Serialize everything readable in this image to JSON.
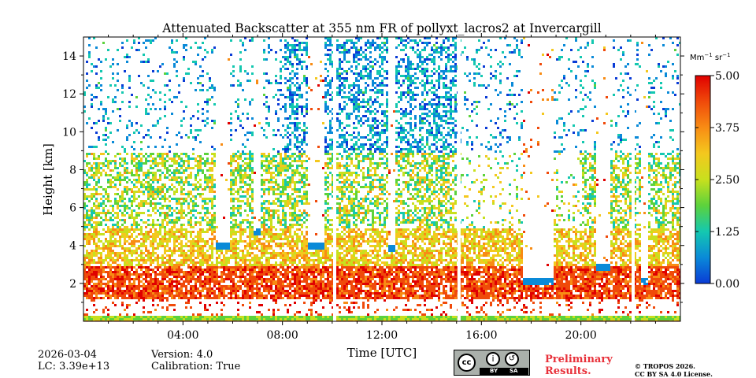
{
  "chart_data": {
    "type": "heatmap",
    "title": "Attenuated Backscatter at 355 nm FR of pollyxt_lacros2 at Invercargill",
    "xlabel": "Time [UTC]",
    "ylabel": "Height [km]",
    "xlim": [
      0,
      24
    ],
    "ylim": [
      0,
      15
    ],
    "x_ticks": [
      {
        "value": 4,
        "label": "04:00"
      },
      {
        "value": 8,
        "label": "08:00"
      },
      {
        "value": 12,
        "label": "12:00"
      },
      {
        "value": 16,
        "label": "16:00"
      },
      {
        "value": 20,
        "label": "20:00"
      }
    ],
    "y_ticks": [
      {
        "value": 2,
        "label": "2"
      },
      {
        "value": 4,
        "label": "4"
      },
      {
        "value": 6,
        "label": "6"
      },
      {
        "value": 8,
        "label": "8"
      },
      {
        "value": 10,
        "label": "10"
      },
      {
        "value": 12,
        "label": "12"
      },
      {
        "value": 14,
        "label": "14"
      }
    ],
    "colorbar": {
      "unit_base": "Mm",
      "unit_exp1": "−1",
      "unit_mid": " sr",
      "unit_exp2": "−1",
      "range": [
        0,
        5
      ],
      "ticks": [
        {
          "value": 0,
          "label": "0.00"
        },
        {
          "value": 1.25,
          "label": "1.25"
        },
        {
          "value": 2.5,
          "label": "2.50"
        },
        {
          "value": 3.75,
          "label": "3.75"
        },
        {
          "value": 5,
          "label": "5.00"
        }
      ],
      "colors": [
        "#0a3bd6",
        "#0a8ad8",
        "#14c8b0",
        "#5cd23c",
        "#c8e01e",
        "#f4c81e",
        "#f88c14",
        "#f04a0a",
        "#e00000"
      ]
    },
    "data_gaps_hours": [
      10.1,
      15.1,
      22.1
    ],
    "cloud_profiles": [
      {
        "start_hour": 5.3,
        "end_hour": 5.8,
        "cloud_base_km": 3.8
      },
      {
        "start_hour": 6.8,
        "end_hour": 7.1,
        "cloud_base_km": 4.6
      },
      {
        "start_hour": 9.0,
        "end_hour": 9.6,
        "cloud_base_km": 3.8
      },
      {
        "start_hour": 12.2,
        "end_hour": 12.5,
        "cloud_base_km": 3.7
      },
      {
        "start_hour": 17.6,
        "end_hour": 18.9,
        "cloud_base_km": 2.0
      },
      {
        "start_hour": 20.6,
        "end_hour": 21.1,
        "cloud_base_km": 2.7
      },
      {
        "start_hour": 22.4,
        "end_hour": 22.7,
        "cloud_base_km": 2.0
      }
    ]
  },
  "footer": {
    "date": "2026-03-04",
    "lc": "LC: 3.39e+13",
    "version": "Version: 4.0",
    "calibration": "Calibration: True",
    "preliminary_line1": "Preliminary",
    "preliminary_line2": "Results.",
    "copyright_line1": "© TROPOS 2026.",
    "copyright_line2": "CC BY SA 4.0 License.",
    "license_badge": {
      "cc": "cc",
      "by": "BY",
      "sa": "SA"
    }
  }
}
